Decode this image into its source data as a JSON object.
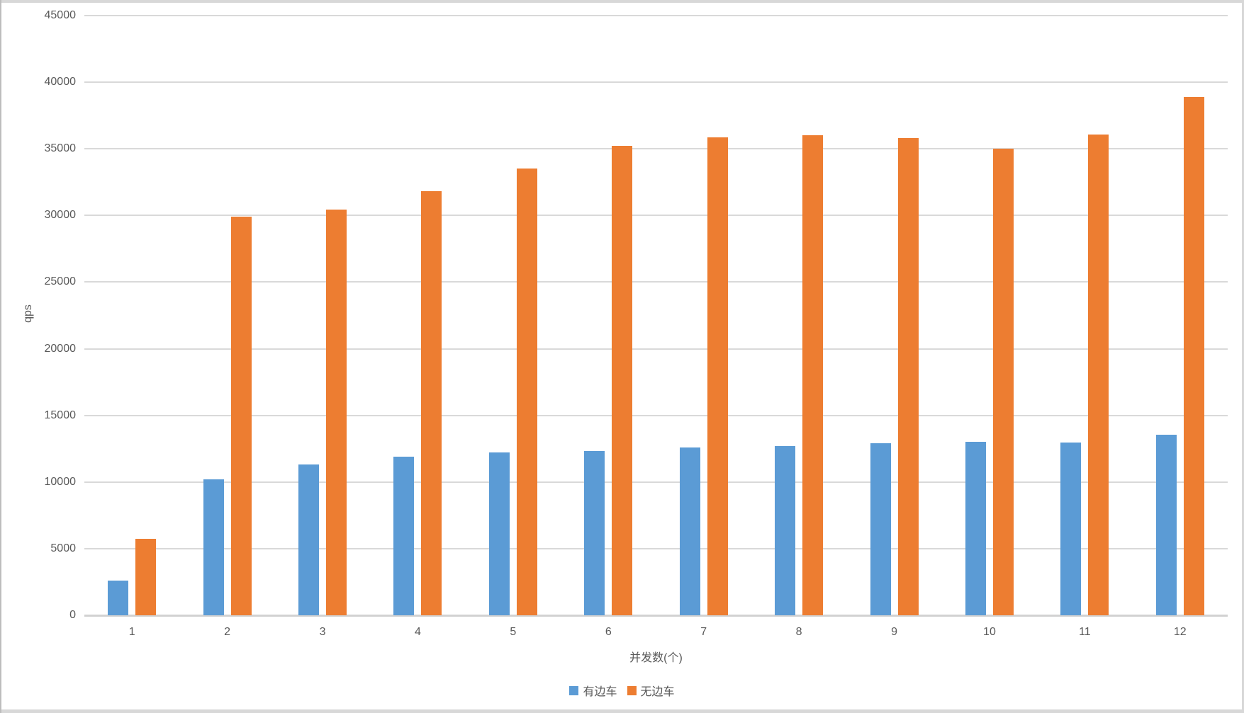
{
  "chart_data": {
    "type": "bar",
    "title": "",
    "xlabel": "并发数(个)",
    "ylabel": "qps",
    "categories": [
      "1",
      "2",
      "3",
      "4",
      "5",
      "6",
      "7",
      "8",
      "9",
      "10",
      "11",
      "12"
    ],
    "series": [
      {
        "name": "有边车",
        "color": "#5B9BD5",
        "values": [
          2600,
          10200,
          11300,
          11900,
          12200,
          12300,
          12600,
          12700,
          12900,
          13000,
          12950,
          13550
        ]
      },
      {
        "name": "无边车",
        "color": "#ED7D31",
        "values": [
          5750,
          29900,
          30450,
          31800,
          33550,
          35200,
          35850,
          36000,
          35800,
          35000,
          36050,
          38900
        ]
      }
    ],
    "ylim": [
      0,
      45000
    ],
    "ytick_interval": 5000,
    "ytick_labels": [
      "0",
      "5000",
      "10000",
      "15000",
      "20000",
      "25000",
      "30000",
      "35000",
      "40000",
      "45000"
    ],
    "grid": true,
    "legend_position": "bottom"
  },
  "colors": {
    "grid": "#d9d9d9",
    "axis_line": "#d2d2d2",
    "text": "#595959",
    "frame": "#d8d8d8"
  }
}
